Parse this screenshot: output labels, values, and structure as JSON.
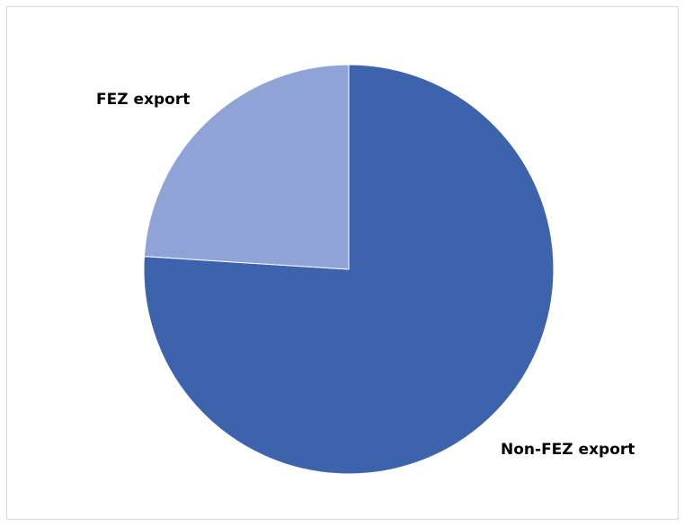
{
  "chart_data": {
    "type": "pie",
    "title": "",
    "start_angle_deg": 0,
    "direction": "clockwise",
    "slices": [
      {
        "label": "Non-FEZ export",
        "value": 76,
        "color": "#3d63ad"
      },
      {
        "label": "FEZ export",
        "value": 24,
        "color": "#8fa3d6"
      }
    ],
    "legend": "none",
    "border_color": "#d9d9d9"
  }
}
